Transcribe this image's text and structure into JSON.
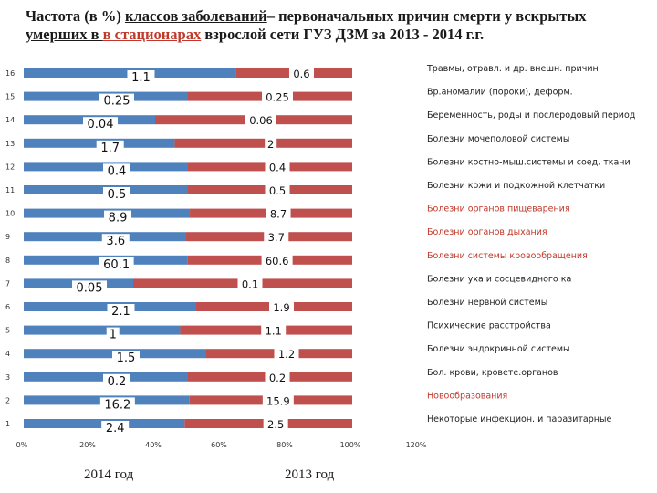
{
  "title": {
    "part1": "Частота (в %) ",
    "part2": "классов заболеваний",
    "part3": "– первоначальных причин смерти у вскрытых",
    "part4": "умерших в ",
    "part5": "в стационарах",
    "part6": " взрослой сети ГУЗ ДЗМ  за 2013 - 2014 г.г."
  },
  "colors": {
    "s2014": "#4f81bd",
    "s2013": "#c0504d",
    "red_text": "#c0392b"
  },
  "chart_data": {
    "type": "bar",
    "orientation": "horizontal-stacked-100",
    "xlim": [
      0,
      120
    ],
    "xticks": [
      "0%",
      "20%",
      "40%",
      "60%",
      "80%",
      "100%",
      "120%"
    ],
    "series": [
      {
        "name": "2014 год",
        "color": "#4f81bd"
      },
      {
        "name": "2013 год",
        "color": "#c0504d"
      }
    ],
    "rows": [
      {
        "num": "16",
        "cat": "Травмы, отравл. и др. внешн. причин",
        "v2014": 1.1,
        "v2013": 0.6,
        "l2014": "1.1",
        "l2013": "0.6",
        "red": false
      },
      {
        "num": "15",
        "cat": "Вр.аномалии (пороки), деформ.",
        "v2014": 0.25,
        "v2013": 0.25,
        "l2014": "0.25",
        "l2013": "0.25",
        "red": false
      },
      {
        "num": "14",
        "cat": "Беременность, роды и послеродовый период",
        "v2014": 0.04,
        "v2013": 0.06,
        "l2014": "0.04",
        "l2013": "0.06",
        "red": false
      },
      {
        "num": "13",
        "cat": "Болезни мочеполовой системы",
        "v2014": 1.7,
        "v2013": 2,
        "l2014": "1.7",
        "l2013": "2",
        "red": false
      },
      {
        "num": "12",
        "cat": "Болезни костно-мыш.системы и соед. ткани",
        "v2014": 0.4,
        "v2013": 0.4,
        "l2014": "0.4",
        "l2013": "0.4",
        "red": false
      },
      {
        "num": "11",
        "cat": "Болезни кожи и подкожной клетчатки",
        "v2014": 0.5,
        "v2013": 0.5,
        "l2014": "0.5",
        "l2013": "0.5",
        "red": false
      },
      {
        "num": "10",
        "cat": "Болезни органов пищеварения",
        "v2014": 8.9,
        "v2013": 8.7,
        "l2014": "8.9",
        "l2013": "8.7",
        "red": true
      },
      {
        "num": "9",
        "cat": "Болезни органов дыхания",
        "v2014": 3.6,
        "v2013": 3.7,
        "l2014": "3.6",
        "l2013": "3.7",
        "red": true
      },
      {
        "num": "8",
        "cat": "Болезни системы кровообращения",
        "v2014": 60.1,
        "v2013": 60.6,
        "l2014": "60.1",
        "l2013": "60.6",
        "red": true
      },
      {
        "num": "7",
        "cat": "Болезни уха и сосцевидного ка",
        "v2014": 0.05,
        "v2013": 0.1,
        "l2014": "0.05",
        "l2013": "0.1",
        "red": false
      },
      {
        "num": "6",
        "cat": "Болезни нервной системы",
        "v2014": 2.1,
        "v2013": 1.9,
        "l2014": "2.1",
        "l2013": "1.9",
        "red": false
      },
      {
        "num": "5",
        "cat": "Психические расстройства",
        "v2014": 1,
        "v2013": 1.1,
        "l2014": "1",
        "l2013": "1.1",
        "red": false
      },
      {
        "num": "4",
        "cat": "Болезни эндокринной системы",
        "v2014": 1.5,
        "v2013": 1.2,
        "l2014": "1.5",
        "l2013": "1.2",
        "red": false
      },
      {
        "num": "3",
        "cat": "Бол. крови, кровете.органов",
        "v2014": 0.2,
        "v2013": 0.2,
        "l2014": "0.2",
        "l2013": "0.2",
        "red": false
      },
      {
        "num": "2",
        "cat": "Новообразования",
        "v2014": 16.2,
        "v2013": 15.9,
        "l2014": "16.2",
        "l2013": "15.9",
        "red": true
      },
      {
        "num": "1",
        "cat": "Некоторые инфекцион. и паразитарные",
        "v2014": 2.4,
        "v2013": 2.5,
        "l2014": "2.4",
        "l2013": "2.5",
        "red": false
      }
    ]
  },
  "legend": {
    "label2014": "2014 год",
    "label2013": "2013 год"
  }
}
